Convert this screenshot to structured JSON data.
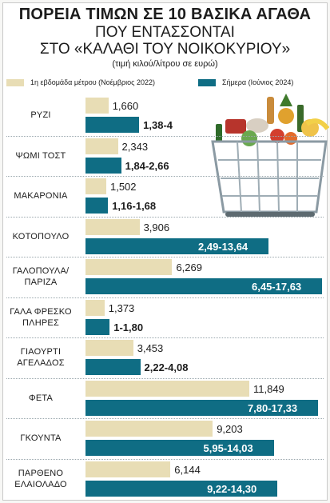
{
  "title_line1": "ΠΟΡΕΙΑ ΤΙΜΩΝ ΣΕ 10 ΒΑΣΙΚΑ ΑΓΑΘΑ",
  "title_line2": "ΠΟΥ ΕΝΤΑΣΣΟΝΤΑΙ",
  "title_line3": "ΣΤΟ «ΚΑΛΑΘΙ ΤΟΥ ΝΟΙΚΟΚΥΡΙΟΥ»",
  "subtitle": "(τιμή κιλού/λίτρου σε ευρώ)",
  "colors": {
    "old": "#e8ddb5",
    "new": "#0f6d84"
  },
  "chart_data": {
    "type": "bar",
    "orientation": "horizontal",
    "title": "ΠΟΡΕΙΑ ΤΙΜΩΝ ΣΕ 10 ΒΑΣΙΚΑ ΑΓΑΘΑ ΠΟΥ ΕΝΤΑΣΣΟΝΤΑΙ ΣΤΟ «ΚΑΛΑΘΙ ΤΟΥ ΝΟΙΚΟΚΥΡΙΟΥ»",
    "subtitle": "(τιμή κιλού/λίτρου σε ευρώ)",
    "legend_position": "top",
    "categories": [
      [
        "ΡΥΖΙ"
      ],
      [
        "ΨΩΜΙ ΤΟΣΤ"
      ],
      [
        "ΜΑΚΑΡΟΝΙΑ"
      ],
      [
        "ΚΟΤΟΠΟΥΛΟ"
      ],
      [
        "ΓΑΛΟΠΟΥΛΑ/",
        "ΠΑΡΙΖΑ"
      ],
      [
        "ΓΑΛΑ ΦΡΕΣΚΟ",
        "ΠΛΗΡΕΣ"
      ],
      [
        "ΓΙΑΟΥΡΤΙ",
        "ΑΓΕΛΑΔΟΣ"
      ],
      [
        "ΦΕΤΑ"
      ],
      [
        "ΓΚΟΥΝΤΑ"
      ],
      [
        "ΠΑΡΘΕΝΟ",
        "ΕΛΑΙΟΛΑΔΟ"
      ]
    ],
    "series": [
      {
        "name": "1η εβδομάδα μέτρου (Νοέμβριος 2022)",
        "color": "#e8ddb5",
        "labels": [
          "1,660",
          "2,343",
          "1,502",
          "3,906",
          "6,269",
          "1,373",
          "3,453",
          "11,849",
          "9,203",
          "6,144"
        ],
        "values": [
          1.66,
          2.343,
          1.502,
          3.906,
          6.269,
          1.373,
          3.453,
          11.849,
          9.203,
          6.144
        ]
      },
      {
        "name": "Σήμερα (Ιούνιος 2024)",
        "color": "#0f6d84",
        "labels": [
          "1,38-4",
          "1,84-2,66",
          "1,16-1,68",
          "2,49-13,64",
          "6,45-17,63",
          "1-1,80",
          "2,22-4,08",
          "7,80-17,33",
          "5,95-14,03",
          "9,22-14,30"
        ],
        "ranges": [
          [
            1.38,
            4
          ],
          [
            1.84,
            2.66
          ],
          [
            1.16,
            1.68
          ],
          [
            2.49,
            13.64
          ],
          [
            6.45,
            17.63
          ],
          [
            1,
            1.8
          ],
          [
            2.22,
            4.08
          ],
          [
            7.8,
            17.33
          ],
          [
            5.95,
            14.03
          ],
          [
            9.22,
            14.3
          ]
        ]
      }
    ]
  }
}
